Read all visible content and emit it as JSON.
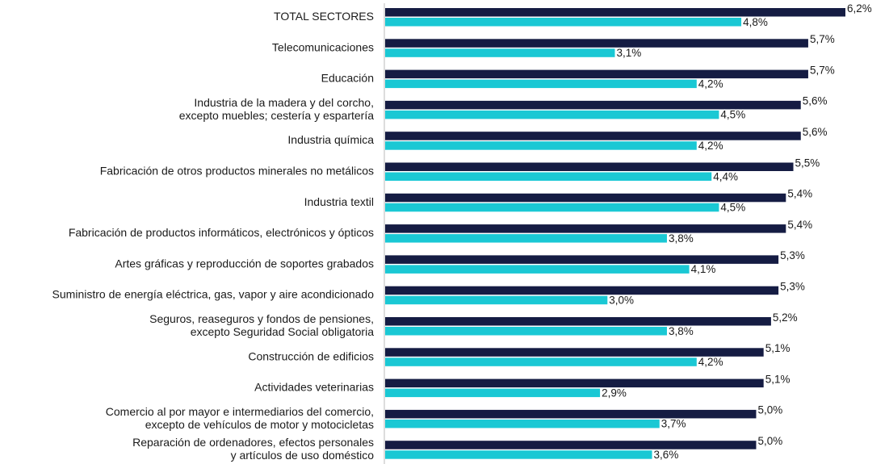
{
  "chart_data": {
    "type": "bar",
    "orientation": "horizontal",
    "categories": [
      [
        "TOTAL SECTORES"
      ],
      [
        "Telecomunicaciones"
      ],
      [
        "Educación"
      ],
      [
        "Industria de la madera y del corcho,",
        "excepto muebles; cestería y espartería"
      ],
      [
        "Industria química"
      ],
      [
        "Fabricación de otros productos minerales no metálicos"
      ],
      [
        "Industria textil"
      ],
      [
        "Fabricación de productos informáticos, electrónicos y ópticos"
      ],
      [
        "Artes gráficas y reproducción de soportes grabados"
      ],
      [
        "Suministro de energía eléctrica, gas, vapor y aire acondicionado"
      ],
      [
        "Seguros, reaseguros y fondos de pensiones,",
        "excepto Seguridad Social obligatoria"
      ],
      [
        "Construcción de edificios"
      ],
      [
        "Actividades veterinarias"
      ],
      [
        "Comercio al por mayor e intermediarios del comercio,",
        "excepto de vehículos de motor y motocicletas"
      ],
      [
        "Reparación de ordenadores, efectos personales",
        "y artículos de uso doméstico"
      ]
    ],
    "series": [
      {
        "color": "#151c43",
        "values": [
          6.2,
          5.7,
          5.7,
          5.6,
          5.6,
          5.5,
          5.4,
          5.4,
          5.3,
          5.3,
          5.2,
          5.1,
          5.1,
          5.0,
          5.0
        ],
        "value_labels": [
          "6,2%",
          "5,7%",
          "5,7%",
          "5,6%",
          "5,6%",
          "5,5%",
          "5,4%",
          "5,4%",
          "5,3%",
          "5,3%",
          "5,2%",
          "5,1%",
          "5,1%",
          "5,0%",
          "5,0%"
        ]
      },
      {
        "color": "#1ac8d4",
        "values": [
          4.8,
          3.1,
          4.2,
          4.5,
          4.2,
          4.4,
          4.5,
          3.8,
          4.1,
          3.0,
          3.8,
          4.2,
          2.9,
          3.7,
          3.6
        ],
        "value_labels": [
          "4,8%",
          "3,1%",
          "4,2%",
          "4,5%",
          "4,2%",
          "4,4%",
          "4,5%",
          "3,8%",
          "4,1%",
          "3,0%",
          "3,8%",
          "4,2%",
          "2,9%",
          "3,7%",
          "3,6%"
        ]
      }
    ]
  }
}
